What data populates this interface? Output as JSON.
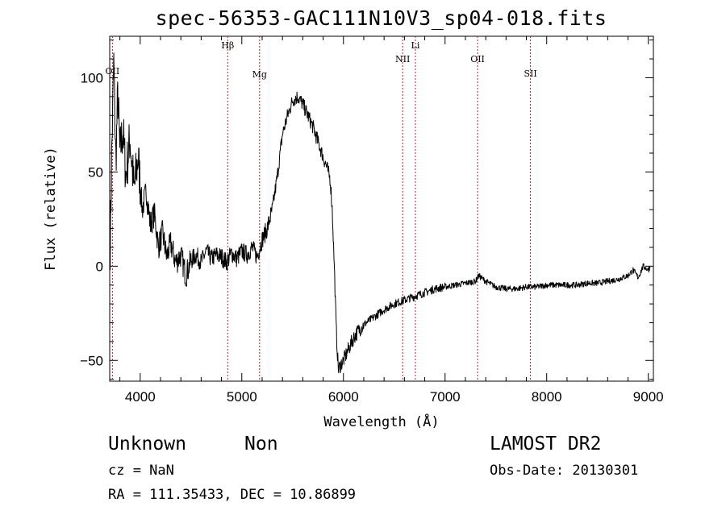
{
  "title": "spec-56353-GAC111N10V3_sp04-018.fits",
  "object_class": "Unknown",
  "object_subclass": "Non",
  "survey": "LAMOST DR2",
  "cz": "cz = NaN",
  "obs_date": "Obs-Date: 20130301",
  "radec": "RA = 111.35433, DEC =  10.86899",
  "chart_data": {
    "type": "line",
    "xlabel": "Wavelength (Å)",
    "ylabel": "Flux (relative)",
    "xlim": [
      3700,
      9050
    ],
    "ylim": [
      -61,
      122
    ],
    "xticks": [
      4000,
      5000,
      6000,
      7000,
      8000,
      9000
    ],
    "yticks": [
      -50,
      0,
      50,
      100
    ],
    "grid": false,
    "lines": [
      {
        "label": "OII",
        "x": 3727
      },
      {
        "label": "Hβ",
        "x": 4861
      },
      {
        "label": "Mg",
        "x": 5175
      },
      {
        "label": "NII",
        "x": 6583
      },
      {
        "label": "Li",
        "x": 6708
      },
      {
        "label": "OII",
        "x": 7320
      },
      {
        "label": "SII",
        "x": 7840
      }
    ],
    "spectrum": [
      [
        3705,
        12
      ],
      [
        3720,
        60
      ],
      [
        3740,
        108
      ],
      [
        3760,
        55
      ],
      [
        3780,
        92
      ],
      [
        3800,
        60
      ],
      [
        3830,
        72
      ],
      [
        3860,
        48
      ],
      [
        3900,
        68
      ],
      [
        3940,
        40
      ],
      [
        3980,
        58
      ],
      [
        4020,
        30
      ],
      [
        4060,
        40
      ],
      [
        4100,
        22
      ],
      [
        4140,
        28
      ],
      [
        4180,
        10
      ],
      [
        4220,
        18
      ],
      [
        4260,
        5
      ],
      [
        4300,
        12
      ],
      [
        4350,
        2
      ],
      [
        4400,
        6
      ],
      [
        4450,
        -5
      ],
      [
        4500,
        3
      ],
      [
        4550,
        6
      ],
      [
        4600,
        2
      ],
      [
        4650,
        8
      ],
      [
        4700,
        4
      ],
      [
        4750,
        6
      ],
      [
        4800,
        5
      ],
      [
        4850,
        2
      ],
      [
        4900,
        7
      ],
      [
        4950,
        4
      ],
      [
        5000,
        8
      ],
      [
        5050,
        6
      ],
      [
        5100,
        10
      ],
      [
        5150,
        5
      ],
      [
        5200,
        14
      ],
      [
        5250,
        20
      ],
      [
        5300,
        30
      ],
      [
        5350,
        48
      ],
      [
        5400,
        70
      ],
      [
        5450,
        80
      ],
      [
        5500,
        88
      ],
      [
        5550,
        90
      ],
      [
        5600,
        86
      ],
      [
        5650,
        80
      ],
      [
        5700,
        74
      ],
      [
        5750,
        66
      ],
      [
        5800,
        58
      ],
      [
        5840,
        52
      ],
      [
        5870,
        46
      ],
      [
        5890,
        30
      ],
      [
        5910,
        0
      ],
      [
        5930,
        -35
      ],
      [
        5950,
        -55
      ],
      [
        5975,
        -52
      ],
      [
        6000,
        -50
      ],
      [
        6050,
        -44
      ],
      [
        6100,
        -38
      ],
      [
        6150,
        -34
      ],
      [
        6200,
        -31
      ],
      [
        6300,
        -27
      ],
      [
        6400,
        -23
      ],
      [
        6500,
        -20
      ],
      [
        6600,
        -18
      ],
      [
        6700,
        -16
      ],
      [
        6800,
        -14
      ],
      [
        6900,
        -12
      ],
      [
        7000,
        -11
      ],
      [
        7100,
        -10
      ],
      [
        7200,
        -9
      ],
      [
        7300,
        -8
      ],
      [
        7330,
        -5
      ],
      [
        7400,
        -8
      ],
      [
        7500,
        -11
      ],
      [
        7600,
        -12
      ],
      [
        7700,
        -12
      ],
      [
        7800,
        -11
      ],
      [
        7900,
        -11
      ],
      [
        8000,
        -10
      ],
      [
        8100,
        -10
      ],
      [
        8200,
        -10
      ],
      [
        8300,
        -10
      ],
      [
        8400,
        -9
      ],
      [
        8500,
        -9
      ],
      [
        8600,
        -8
      ],
      [
        8700,
        -7
      ],
      [
        8800,
        -5
      ],
      [
        8850,
        -2
      ],
      [
        8900,
        -6
      ],
      [
        8950,
        0
      ],
      [
        9000,
        -2
      ],
      [
        9020,
        0
      ]
    ]
  }
}
